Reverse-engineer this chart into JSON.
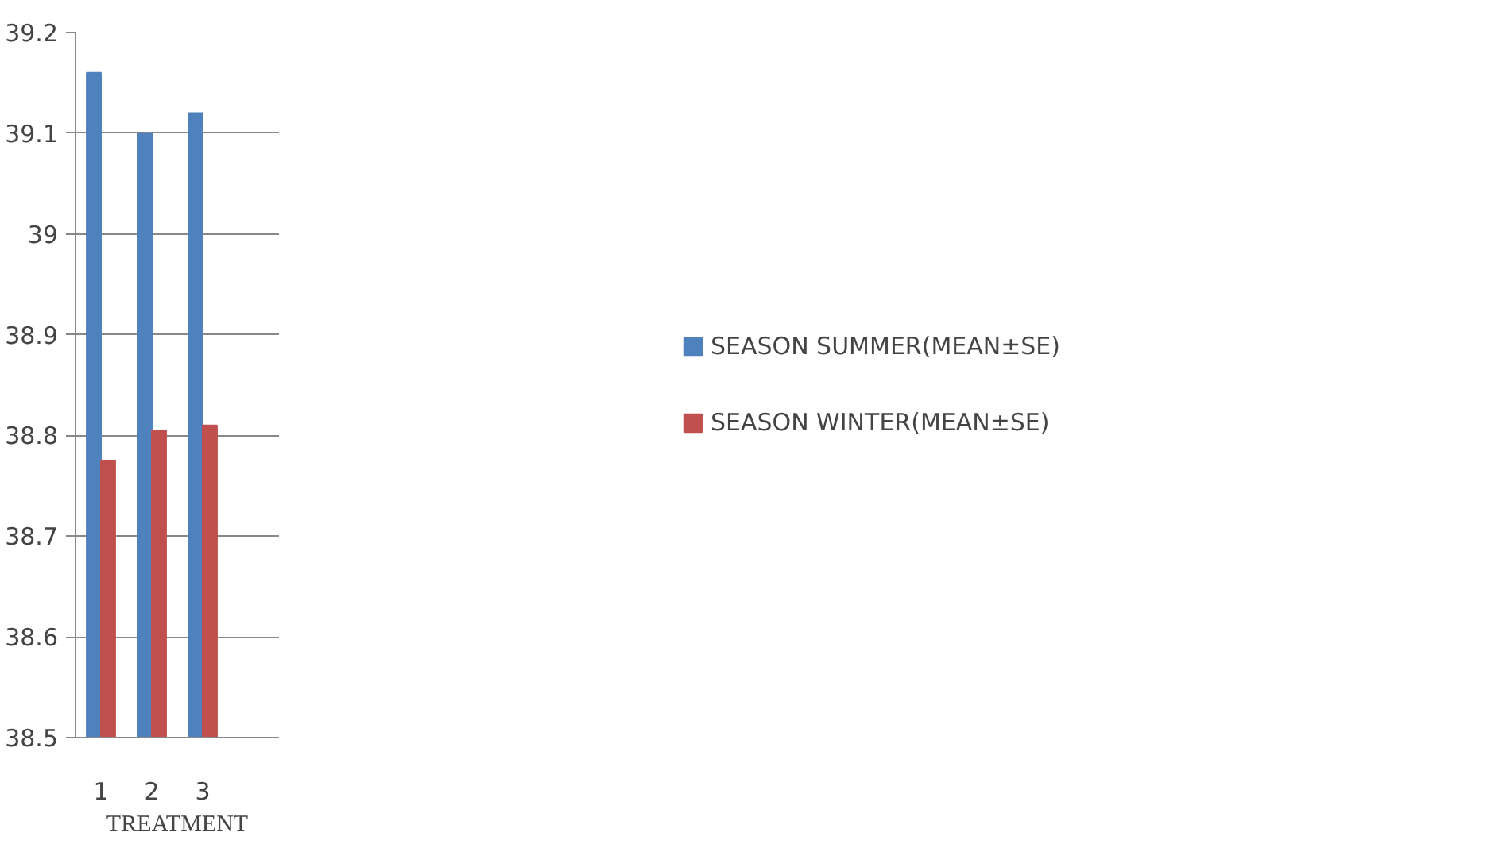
{
  "chart_data": {
    "type": "bar",
    "xlabel": "TREATMENT",
    "categories": [
      "1",
      "2",
      "3",
      null
    ],
    "series": [
      {
        "name": "SEASON SUMMER(MEAN±SE)",
        "color": "#4f81bd",
        "values": [
          39.16,
          39.1,
          39.12,
          null
        ]
      },
      {
        "name": "SEASON WINTER(MEAN±SE)",
        "color": "#c0504d",
        "values": [
          38.775,
          38.805,
          38.81,
          null
        ]
      }
    ],
    "ylim": [
      38.5,
      39.2
    ],
    "yticks": [
      38.5,
      38.6,
      38.7,
      38.8,
      38.9,
      {
        "value": 39,
        "label": "39"
      },
      39.1,
      39.2
    ],
    "grid": "y",
    "legend": "right"
  }
}
